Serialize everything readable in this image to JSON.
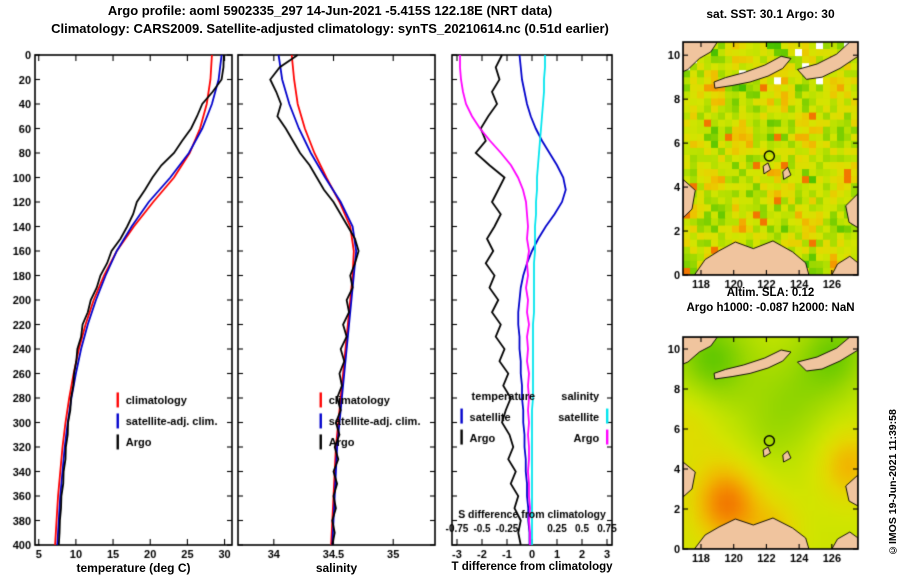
{
  "header": {
    "title1": "Argo profile: aoml 5902335_297 14-Jun-2021 -5.415S 122.18E (NRT data)",
    "title2": "Climatology: CARS2009. Satellite-adjusted climatology: synTS_20210614.nc (0.51d earlier)"
  },
  "copyright": "©IMOS 19-Jun-2021 11:39:58",
  "colors": {
    "climatology": "#ff0000",
    "satellite_adj": "#0000cc",
    "argo": "#000000",
    "salinity_satellite": "#00e5ee",
    "salinity_argo": "#ff00ff",
    "land": "#f0c49e",
    "frame": "#000000"
  },
  "map_labels": {
    "sst_title": "sat. SST: 30.1 Argo: 30",
    "sla_line1": "Altim. SLA: 0.12",
    "sla_line2": "Argo h1000: -0.087 h2000: NaN"
  },
  "maps_shared": {
    "xlim": [
      116.9,
      127.6
    ],
    "ylim": [
      0,
      10.6
    ],
    "xticks": [
      118,
      120,
      122,
      124,
      126
    ],
    "yticks": [
      0,
      2,
      4,
      6,
      8,
      10
    ],
    "marker": {
      "lon": 122.18,
      "lat": 5.415
    },
    "palette": [
      "#00a000",
      "#38bc00",
      "#70cc00",
      "#9cd800",
      "#bce200",
      "#d4e400",
      "#e4d800",
      "#f0bc00",
      "#f49000",
      "#f06000"
    ],
    "land_polygons": [
      [
        [
          116.9,
          10.6
        ],
        [
          119.0,
          10.6
        ],
        [
          118.6,
          10.15
        ],
        [
          117.9,
          9.85
        ],
        [
          117.2,
          9.35
        ],
        [
          116.9,
          9.25
        ]
      ],
      [
        [
          118.85,
          8.5
        ],
        [
          119.9,
          8.62
        ],
        [
          121.0,
          8.78
        ],
        [
          122.1,
          9.05
        ],
        [
          123.0,
          9.4
        ],
        [
          123.5,
          9.85
        ],
        [
          122.9,
          9.95
        ],
        [
          121.9,
          9.55
        ],
        [
          120.6,
          9.2
        ],
        [
          119.5,
          8.98
        ],
        [
          118.8,
          8.78
        ]
      ],
      [
        [
          123.9,
          9.35
        ],
        [
          125.1,
          9.6
        ],
        [
          126.3,
          10.05
        ],
        [
          127.1,
          10.6
        ],
        [
          127.6,
          10.6
        ],
        [
          127.6,
          9.95
        ],
        [
          126.5,
          9.4
        ],
        [
          125.4,
          9.0
        ],
        [
          124.45,
          8.9
        ]
      ],
      [
        [
          127.6,
          3.7
        ],
        [
          126.85,
          3.15
        ],
        [
          127.05,
          2.4
        ],
        [
          127.6,
          2.15
        ]
      ],
      [
        [
          116.9,
          4.35
        ],
        [
          117.65,
          3.85
        ],
        [
          117.45,
          3.0
        ],
        [
          116.9,
          2.6
        ]
      ],
      [
        [
          117.6,
          0
        ],
        [
          118.25,
          0.7
        ],
        [
          119.1,
          1.1
        ],
        [
          120.1,
          1.5
        ],
        [
          121.2,
          1.2
        ],
        [
          122.4,
          1.55
        ],
        [
          123.6,
          1.05
        ],
        [
          124.4,
          0.55
        ],
        [
          124.6,
          0
        ]
      ],
      [
        [
          126.0,
          0
        ],
        [
          126.35,
          0.5
        ],
        [
          127.1,
          0.85
        ],
        [
          127.6,
          0.55
        ],
        [
          127.6,
          0
        ]
      ],
      [
        [
          121.85,
          4.6
        ],
        [
          122.25,
          4.8
        ],
        [
          122.1,
          5.1
        ],
        [
          121.8,
          4.95
        ]
      ],
      [
        [
          123.05,
          4.35
        ],
        [
          123.5,
          4.55
        ],
        [
          123.3,
          4.9
        ],
        [
          123.0,
          4.7
        ]
      ]
    ]
  },
  "chart_data": [
    {
      "id": "temperature",
      "type": "line",
      "xlabel": "temperature (deg C)",
      "xlim": [
        4.5,
        31
      ],
      "xticks": [
        5,
        10,
        15,
        20,
        25,
        30
      ],
      "ylim": [
        0,
        400
      ],
      "yticks": [
        0,
        20,
        40,
        60,
        80,
        100,
        120,
        140,
        160,
        180,
        200,
        220,
        240,
        260,
        280,
        300,
        320,
        340,
        360,
        380,
        400
      ],
      "show_ylabels": true,
      "depths": [
        0,
        20,
        40,
        60,
        80,
        100,
        120,
        140,
        160,
        180,
        200,
        220,
        240,
        260,
        280,
        300,
        320,
        340,
        360,
        380,
        400
      ],
      "depths10": [
        0,
        10,
        20,
        30,
        40,
        50,
        60,
        70,
        80,
        90,
        100,
        110,
        120,
        130,
        140,
        150,
        160,
        170,
        180,
        190,
        200,
        210,
        220,
        230,
        240,
        250,
        260,
        270,
        280,
        290,
        300,
        310,
        320,
        330,
        340,
        350,
        360,
        370,
        380,
        390,
        400
      ],
      "series": [
        {
          "name": "climatology",
          "color": "#ff0000",
          "depths": "d20",
          "values": [
            28.3,
            28.1,
            27.6,
            26.7,
            25.3,
            23.2,
            20.4,
            17.8,
            15.5,
            13.8,
            12.4,
            11.3,
            10.4,
            9.7,
            9.1,
            8.6,
            8.2,
            7.9,
            7.6,
            7.4,
            7.2
          ]
        },
        {
          "name": "satellite-adj. clim.",
          "color": "#0000cc",
          "depths": "d20",
          "values": [
            29.6,
            29.2,
            28.3,
            27.0,
            25.2,
            22.7,
            19.8,
            17.5,
            15.5,
            14.0,
            12.7,
            11.6,
            10.7,
            10.0,
            9.4,
            8.9,
            8.5,
            8.2,
            7.9,
            7.7,
            7.5
          ]
        },
        {
          "name": "Argo",
          "color": "#000000",
          "depths": "d10",
          "values": [
            29.9,
            29.85,
            29.6,
            28.4,
            27.0,
            26.3,
            25.5,
            24.3,
            23.2,
            21.5,
            20.3,
            19.3,
            18.2,
            17.7,
            16.9,
            16.0,
            14.8,
            14.2,
            13.3,
            12.8,
            12.0,
            11.6,
            10.9,
            10.7,
            10.2,
            10.05,
            9.75,
            9.65,
            9.35,
            9.25,
            8.95,
            8.9,
            8.65,
            8.6,
            8.35,
            8.3,
            8.05,
            8.0,
            7.85,
            7.8,
            7.7
          ]
        }
      ],
      "legends": [
        {
          "anchor_fx": 0.42,
          "fy": 0.705,
          "align": "left",
          "entries": [
            {
              "label": "climatology",
              "color": "#ff0000"
            },
            {
              "label": "satellite-adj. clim.",
              "color": "#0000cc"
            },
            {
              "label": "Argo",
              "color": "#000000"
            }
          ]
        }
      ]
    },
    {
      "id": "salinity",
      "type": "line",
      "xlabel": "salinity",
      "xlim": [
        33.7,
        35.35
      ],
      "xticks": [
        34,
        34.5,
        35
      ],
      "ylim": [
        0,
        400
      ],
      "yticks": [
        0,
        20,
        40,
        60,
        80,
        100,
        120,
        140,
        160,
        180,
        200,
        220,
        240,
        260,
        280,
        300,
        320,
        340,
        360,
        380,
        400
      ],
      "show_ylabels": false,
      "depths": [
        0,
        20,
        40,
        60,
        80,
        100,
        120,
        140,
        160,
        180,
        200,
        220,
        240,
        260,
        280,
        300,
        320,
        340,
        360,
        380,
        400
      ],
      "depths10": [
        0,
        10,
        20,
        30,
        40,
        50,
        60,
        70,
        80,
        90,
        100,
        110,
        120,
        130,
        140,
        150,
        160,
        170,
        180,
        190,
        200,
        210,
        220,
        230,
        240,
        250,
        260,
        270,
        280,
        290,
        300,
        310,
        320,
        330,
        340,
        350,
        360,
        370,
        380,
        390,
        400
      ],
      "series": [
        {
          "name": "climatology",
          "color": "#ff0000",
          "depths": "d20",
          "values": [
            34.15,
            34.17,
            34.2,
            34.26,
            34.34,
            34.44,
            34.55,
            34.64,
            34.67,
            34.66,
            34.64,
            34.62,
            34.6,
            34.58,
            34.56,
            34.54,
            34.52,
            34.51,
            34.5,
            34.49,
            34.48
          ]
        },
        {
          "name": "satellite-adj. clim.",
          "color": "#0000cc",
          "depths": "d20",
          "values": [
            34.04,
            34.07,
            34.13,
            34.21,
            34.31,
            34.43,
            34.56,
            34.66,
            34.69,
            34.67,
            34.65,
            34.63,
            34.61,
            34.59,
            34.57,
            34.55,
            34.53,
            34.52,
            34.51,
            34.5,
            34.49
          ]
        },
        {
          "name": "Argo",
          "color": "#000000",
          "depths": "d10",
          "values": [
            34.2,
            34.05,
            33.97,
            34.02,
            34.06,
            34.03,
            34.1,
            34.16,
            34.22,
            34.3,
            34.36,
            34.42,
            34.5,
            34.56,
            34.62,
            34.68,
            34.71,
            34.68,
            34.64,
            34.66,
            34.61,
            34.63,
            34.58,
            34.61,
            34.56,
            34.59,
            34.55,
            34.57,
            34.53,
            34.56,
            34.52,
            34.55,
            34.51,
            34.54,
            34.5,
            34.53,
            34.5,
            34.52,
            34.49,
            34.51,
            34.49
          ]
        }
      ],
      "legends": [
        {
          "anchor_fx": 0.42,
          "fy": 0.705,
          "align": "left",
          "entries": [
            {
              "label": "climatology",
              "color": "#ff0000"
            },
            {
              "label": "satellite-adj. clim.",
              "color": "#0000cc"
            },
            {
              "label": "Argo",
              "color": "#000000"
            }
          ]
        }
      ]
    },
    {
      "id": "difference",
      "type": "line",
      "xlabel": "T difference from climatology",
      "xlim": [
        -3.2,
        3.2
      ],
      "xticks": [
        -3,
        -2,
        -1,
        0,
        1,
        2,
        3
      ],
      "ylim": [
        0,
        400
      ],
      "yticks": [
        0,
        20,
        40,
        60,
        80,
        100,
        120,
        140,
        160,
        180,
        200,
        220,
        240,
        260,
        280,
        300,
        320,
        340,
        360,
        380,
        400
      ],
      "show_ylabels": false,
      "top_axis": {
        "ticks": [
          -0.75,
          -0.5,
          -0.25,
          0,
          0.25,
          0.5,
          0.75
        ],
        "scale": 4
      },
      "depths10": [
        0,
        10,
        20,
        30,
        40,
        50,
        60,
        70,
        80,
        90,
        100,
        110,
        120,
        130,
        140,
        150,
        160,
        170,
        180,
        190,
        200,
        210,
        220,
        230,
        240,
        250,
        260,
        270,
        280,
        290,
        300,
        310,
        320,
        330,
        340,
        350,
        360,
        370,
        380,
        390,
        400
      ],
      "series": [
        {
          "name": "temperature satellite",
          "axis": "T",
          "color": "#0000cc",
          "depths": "d10",
          "values": [
            -0.5,
            -0.45,
            -0.4,
            -0.3,
            -0.2,
            -0.05,
            0.15,
            0.4,
            0.7,
            1.0,
            1.25,
            1.35,
            1.2,
            0.9,
            0.55,
            0.25,
            0.0,
            -0.2,
            -0.35,
            -0.45,
            -0.5,
            -0.55,
            -0.55,
            -0.5,
            -0.5,
            -0.45,
            -0.45,
            -0.4,
            -0.4,
            -0.35,
            -0.35,
            -0.3,
            -0.3,
            -0.25,
            -0.25,
            -0.2,
            -0.2,
            -0.15,
            -0.15,
            -0.1,
            -0.1
          ]
        },
        {
          "name": "temperature Argo",
          "axis": "T",
          "color": "#000000",
          "depths": "d10",
          "values": [
            -1.2,
            -1.45,
            -1.3,
            -1.6,
            -1.4,
            -1.75,
            -2.05,
            -1.85,
            -2.25,
            -1.7,
            -1.1,
            -1.35,
            -1.6,
            -1.25,
            -1.5,
            -1.8,
            -1.55,
            -1.85,
            -1.5,
            -1.7,
            -1.35,
            -1.6,
            -1.25,
            -1.45,
            -1.1,
            -1.3,
            -0.95,
            -1.15,
            -0.85,
            -1.05,
            -1.2,
            -0.9,
            -0.75,
            -0.95,
            -0.65,
            -0.85,
            -0.55,
            -0.7,
            -0.45,
            -0.55,
            -0.45
          ]
        },
        {
          "name": "salinity satellite",
          "axis": "S",
          "color": "#00e5ee",
          "depths": "d10",
          "values": [
            0.13,
            0.13,
            0.12,
            0.12,
            0.11,
            0.1,
            0.09,
            0.08,
            0.07,
            0.06,
            0.05,
            0.05,
            0.04,
            0.04,
            0.03,
            0.03,
            0.03,
            0.02,
            0.02,
            0.02,
            0.02,
            0.02,
            0.01,
            0.01,
            0.01,
            0.01,
            0.01,
            0.01,
            0.01,
            0,
            0,
            0,
            0,
            0,
            0,
            0,
            0,
            0,
            0,
            0,
            0
          ]
        },
        {
          "name": "salinity Argo",
          "axis": "S",
          "color": "#ff00ff",
          "depths": "d10",
          "values": [
            -0.72,
            -0.72,
            -0.71,
            -0.69,
            -0.66,
            -0.6,
            -0.52,
            -0.42,
            -0.31,
            -0.21,
            -0.14,
            -0.09,
            -0.06,
            -0.05,
            -0.04,
            -0.05,
            -0.03,
            -0.05,
            -0.04,
            -0.06,
            -0.04,
            -0.05,
            -0.03,
            -0.05,
            -0.04,
            -0.05,
            -0.03,
            -0.04,
            -0.03,
            -0.04,
            -0.03,
            -0.04,
            -0.03,
            -0.03,
            -0.04,
            -0.03,
            -0.03,
            -0.02,
            -0.03,
            -0.02,
            -0.02
          ]
        }
      ],
      "legends": [
        {
          "header": "temperature",
          "anchor_fx": 0.06,
          "fy": 0.695,
          "align": "left",
          "entries": [
            {
              "label": "satellite",
              "color": "#0000cc"
            },
            {
              "label": "Argo",
              "color": "#000000"
            }
          ]
        },
        {
          "header": "salinity",
          "anchor_fx": 0.97,
          "fy": 0.695,
          "align": "right",
          "entries": [
            {
              "label": "satellite",
              "color": "#00e5ee"
            },
            {
              "label": "Argo",
              "color": "#ff00ff"
            }
          ]
        }
      ],
      "annotation": {
        "text": "S difference from climatology",
        "fy_text": 0.945,
        "fy_ticks": 0.973,
        "s_ticks": [
          -0.75,
          -0.5,
          -0.25,
          0.25,
          0.5,
          0.75
        ],
        "s_labels": [
          "-0.75",
          "-0.5",
          "-0.25",
          "0.25",
          "0.5",
          "0.75"
        ]
      }
    },
    {
      "id": "sst_map",
      "type": "heatmap",
      "style": "pixelated",
      "title": "sat. SST: 30.1 Argo: 30",
      "noise_seed": 12345,
      "cols": 25,
      "rows": 33
    },
    {
      "id": "sla_map",
      "type": "heatmap",
      "style": "smooth",
      "title": "Altim. SLA: 0.12",
      "base": 0.52,
      "blobs": [
        {
          "x": 119.6,
          "y": 2.3,
          "a": 0.42,
          "r": 2.2
        },
        {
          "x": 127.0,
          "y": 4.2,
          "a": 0.28,
          "r": 1.8
        },
        {
          "x": 118.6,
          "y": 9.4,
          "a": -0.33,
          "r": 2.5
        },
        {
          "x": 126.2,
          "y": 9.8,
          "a": -0.28,
          "r": 2.2
        },
        {
          "x": 123.5,
          "y": 7.4,
          "a": -0.18,
          "r": 2.6
        },
        {
          "x": 117.3,
          "y": 6.6,
          "a": 0.15,
          "r": 2.0
        },
        {
          "x": 122.6,
          "y": 0.9,
          "a": 0.18,
          "r": 1.6
        },
        {
          "x": 121.8,
          "y": 5.3,
          "a": -0.08,
          "r": 2.0
        }
      ]
    }
  ]
}
